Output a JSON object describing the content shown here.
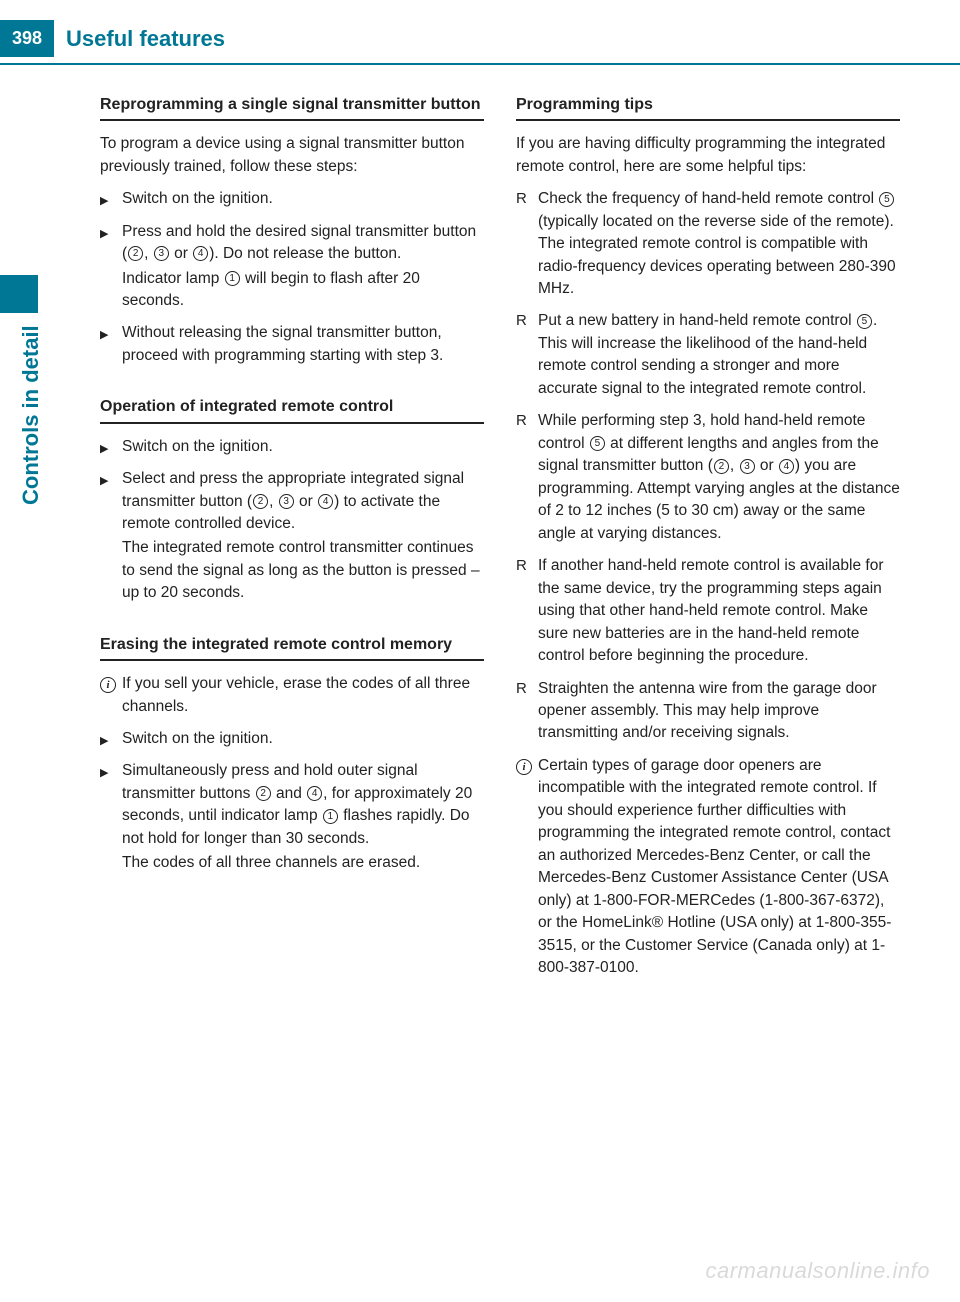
{
  "page_number": "398",
  "chapter_title": "Useful features",
  "sidebar_label": "Controls in detail",
  "colors": {
    "brand": "#007895",
    "text": "#222222",
    "bg": "#ffffff"
  },
  "left": {
    "h1": "Reprogramming a single signal transmitter button",
    "p1": "To program a device using a signal transmitter button previously trained, follow these steps:",
    "s1": "Switch on the ignition.",
    "s2a": "Press and hold the desired signal transmitter button (",
    "s2b": ", ",
    "s2c": " or ",
    "s2d": "). Do not release the button.",
    "s2e": "Indicator lamp ",
    "s2f": " will begin to flash after 20 seconds.",
    "s3": "Without releasing the signal transmitter button, proceed with programming starting with step 3.",
    "h2": "Operation of integrated remote control",
    "s4": "Switch on the ignition.",
    "s5a": "Select and press the appropriate integrated signal transmitter button (",
    "s5b": ", ",
    "s5c": " or ",
    "s5d": ") to activate the remote controlled device.",
    "s5e": "The integrated remote control transmitter continues to send the signal as long as the button is pressed – up to 20 seconds.",
    "h3": "Erasing the integrated remote control memory",
    "i1": "If you sell your vehicle, erase the codes of all three channels.",
    "s6": "Switch on the ignition.",
    "s7a": "Simultaneously press and hold outer signal transmitter buttons ",
    "s7b": " and ",
    "s7c": ", for approximately 20 seconds, until indicator lamp ",
    "s7d": " flashes rapidly. Do not hold for longer than 30 seconds.",
    "s7e": "The codes of all three channels are erased.",
    "c2": "2",
    "c3": "3",
    "c4": "4",
    "c1": "1"
  },
  "right": {
    "h1": "Programming tips",
    "p1": "If you are having difficulty programming the integrated remote control, here are some helpful tips:",
    "b1a": "Check the frequency of hand-held remote control ",
    "b1b": " (typically located on the reverse side of the remote). The integrated remote control is compatible with radio-frequency devices operating between 280-390 MHz.",
    "b2a": "Put a new battery in hand-held remote control ",
    "b2b": ". This will increase the likelihood of the hand-held remote control sending a stronger and more accurate signal to the integrated remote control.",
    "b3a": "While performing step 3, hold hand-held remote control ",
    "b3b": " at different lengths and angles from the signal transmitter button (",
    "b3c": ", ",
    "b3d": " or ",
    "b3e": ") you are programming. Attempt varying angles at the distance of 2 to 12 inches (5 to 30 cm) away or the same angle at varying distances.",
    "b4": "If another hand-held remote control is available for the same device, try the programming steps again using that other hand-held remote control. Make sure new batteries are in the hand-held remote control before beginning the procedure.",
    "b5": "Straighten the antenna wire from the garage door opener assembly. This may help improve transmitting and/or receiving signals.",
    "i1": "Certain types of garage door openers are incompatible with the integrated remote control. If you should experience further difficulties with programming the integrated remote control, contact an authorized Mercedes-Benz Center, or call the Mercedes-Benz Customer Assistance Center (USA only) at 1-800-FOR-MERCedes (1-800-367-6372), or the HomeLink® Hotline (USA only) at 1-800-355-3515, or the Customer Service (Canada only) at 1-800-387-0100.",
    "c5": "5",
    "c2": "2",
    "c3": "3",
    "c4": "4"
  },
  "watermark": "carmanualsonline.info"
}
